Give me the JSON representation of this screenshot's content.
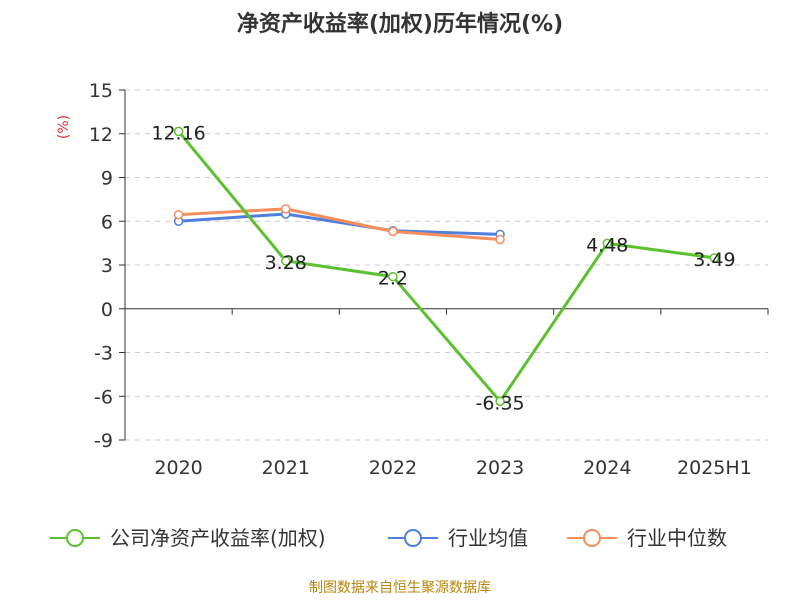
{
  "chart_data": {
    "type": "line",
    "title": "净资产收益率(加权)历年情况(%)",
    "ylabel": "(%)",
    "xlabel": "",
    "categories": [
      "2020",
      "2021",
      "2022",
      "2023",
      "2024",
      "2025H1"
    ],
    "yticks": [
      15,
      12,
      9,
      6,
      3,
      0,
      -3,
      -6,
      -9
    ],
    "ylim": [
      -9,
      15
    ],
    "grid": true,
    "legend_position": "bottom",
    "series": [
      {
        "name": "公司净资产收益率(加权)",
        "color": "#5cc12e",
        "values": [
          12.16,
          3.28,
          2.2,
          -6.35,
          4.48,
          3.49
        ],
        "labels": [
          "12.16",
          "3.28",
          "2.2",
          "-6.35",
          "4.48",
          "3.49"
        ]
      },
      {
        "name": "行业均值",
        "color": "#4f7fdc",
        "values": [
          6.0,
          6.5,
          5.35,
          5.1,
          null,
          null
        ]
      },
      {
        "name": "行业中位数",
        "color": "#f58d5c",
        "values": [
          6.45,
          6.85,
          5.3,
          4.75,
          null,
          null
        ]
      }
    ]
  },
  "footer": {
    "source": "制图数据来自恒生聚源数据库"
  }
}
